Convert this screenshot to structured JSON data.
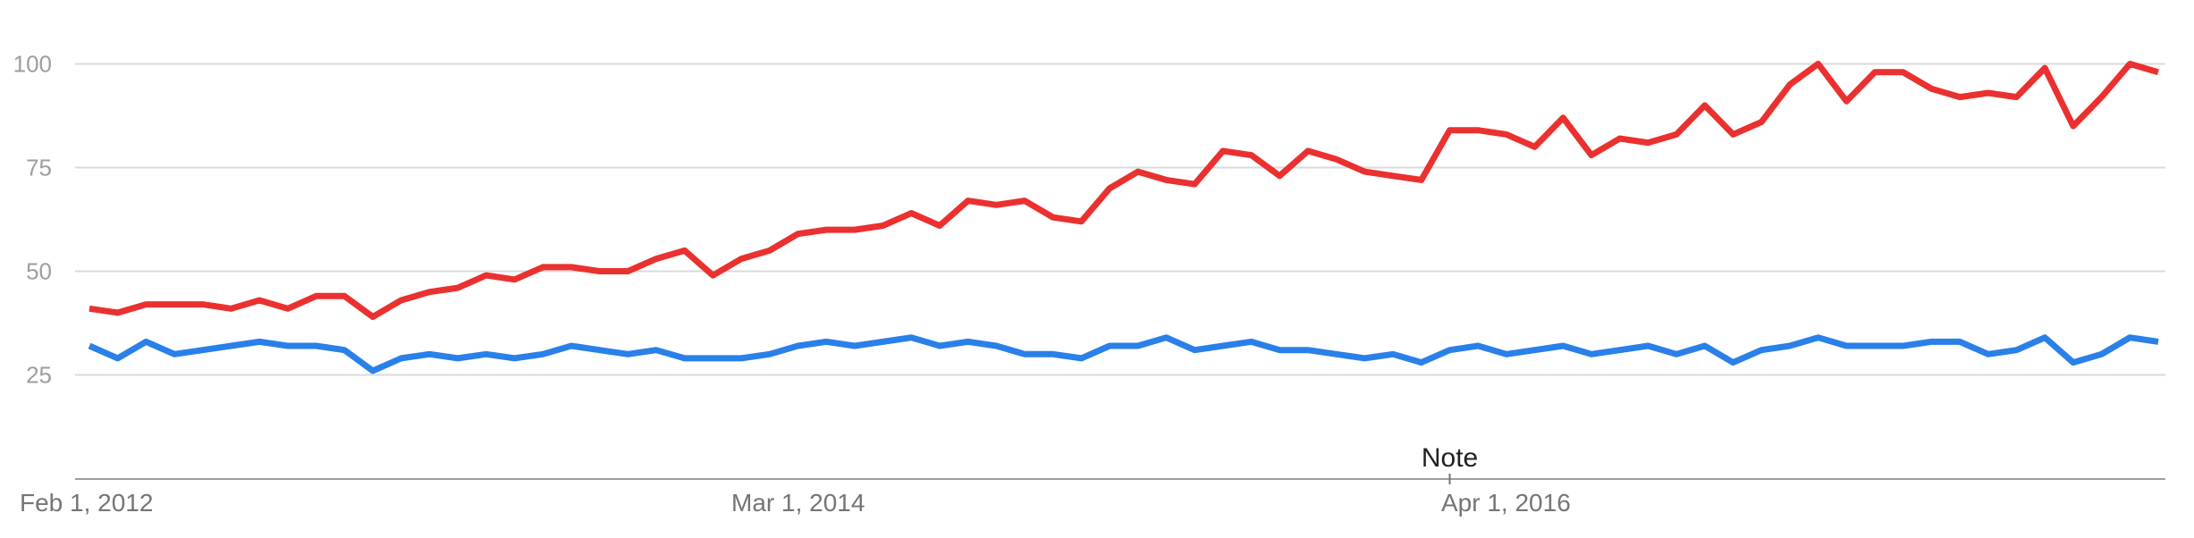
{
  "chart_data": {
    "type": "line",
    "title": "",
    "xlabel": "",
    "ylabel": "",
    "y_ticks": [
      "100",
      "75",
      "50",
      "25"
    ],
    "ylim": [
      0,
      100
    ],
    "x_tick_labels": [
      "Feb 1, 2012",
      "Mar 1, 2014",
      "Apr 1, 2016"
    ],
    "annotation": {
      "label": "Note",
      "at_point_index": 48
    },
    "grid": true,
    "legend": "none",
    "series": [
      {
        "color": "#ea3130",
        "values": [
          41,
          40,
          42,
          42,
          42,
          41,
          43,
          41,
          44,
          44,
          39,
          43,
          45,
          46,
          49,
          48,
          51,
          51,
          50,
          50,
          53,
          55,
          49,
          53,
          55,
          59,
          60,
          60,
          61,
          64,
          61,
          67,
          66,
          67,
          63,
          62,
          70,
          74,
          72,
          71,
          79,
          78,
          73,
          79,
          77,
          74,
          73,
          72,
          84,
          84,
          83,
          80,
          87,
          78,
          82,
          81,
          83,
          90,
          83,
          86,
          95,
          100,
          91,
          98,
          98,
          94,
          92,
          93,
          92,
          99,
          85,
          92,
          100,
          98
        ]
      },
      {
        "color": "#2a80e9",
        "values": [
          32,
          29,
          33,
          30,
          31,
          32,
          33,
          32,
          32,
          31,
          26,
          29,
          30,
          29,
          30,
          29,
          30,
          32,
          31,
          30,
          31,
          29,
          29,
          29,
          30,
          32,
          33,
          32,
          33,
          34,
          32,
          33,
          32,
          30,
          30,
          29,
          32,
          32,
          34,
          31,
          32,
          33,
          31,
          31,
          30,
          29,
          30,
          28,
          31,
          32,
          30,
          31,
          32,
          30,
          31,
          32,
          30,
          32,
          28,
          31,
          32,
          34,
          32,
          32,
          32,
          33,
          33,
          30,
          31,
          34,
          28,
          30,
          34,
          33
        ]
      }
    ]
  }
}
